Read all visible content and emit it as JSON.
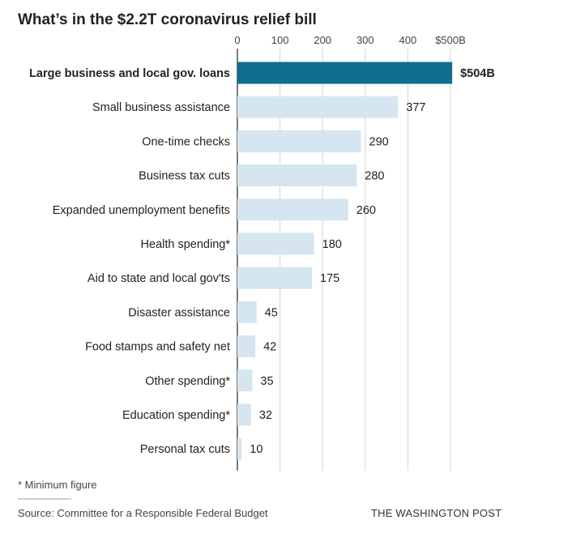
{
  "chart_data": {
    "type": "bar",
    "orientation": "horizontal",
    "title": "What’s in the $2.2T coronavirus relief bill",
    "xlim": [
      0,
      500
    ],
    "grid": true,
    "tick_labels": [
      "0",
      "100",
      "200",
      "300",
      "400",
      "$500B"
    ],
    "ticks": [
      0,
      100,
      200,
      300,
      400,
      500
    ],
    "categories": [
      "Large business and local gov. loans",
      "Small business assistance",
      "One-time checks",
      "Business tax cuts",
      "Expanded unemployment benefits",
      "Health spending*",
      "Aid to state and local gov'ts",
      "Disaster assistance",
      "Food stamps and safety net",
      "Other spending*",
      "Education spending*",
      "Personal tax cuts"
    ],
    "values": [
      504,
      377,
      290,
      280,
      260,
      180,
      175,
      45,
      42,
      35,
      32,
      10
    ],
    "value_labels": [
      "$504B",
      "377",
      "290",
      "280",
      "260",
      "180",
      "175",
      "45",
      "42",
      "35",
      "32",
      "10"
    ],
    "highlight_index": 0,
    "colors": {
      "highlight": "#0e6f8e",
      "bar": "#d5e6f0",
      "grid": "#d4d4d4",
      "axis": "#333333"
    }
  },
  "footer": {
    "note": "* Minimum figure",
    "source": "Source: Committee for a Responsible Federal Budget",
    "brand": "THE WASHINGTON POST"
  }
}
